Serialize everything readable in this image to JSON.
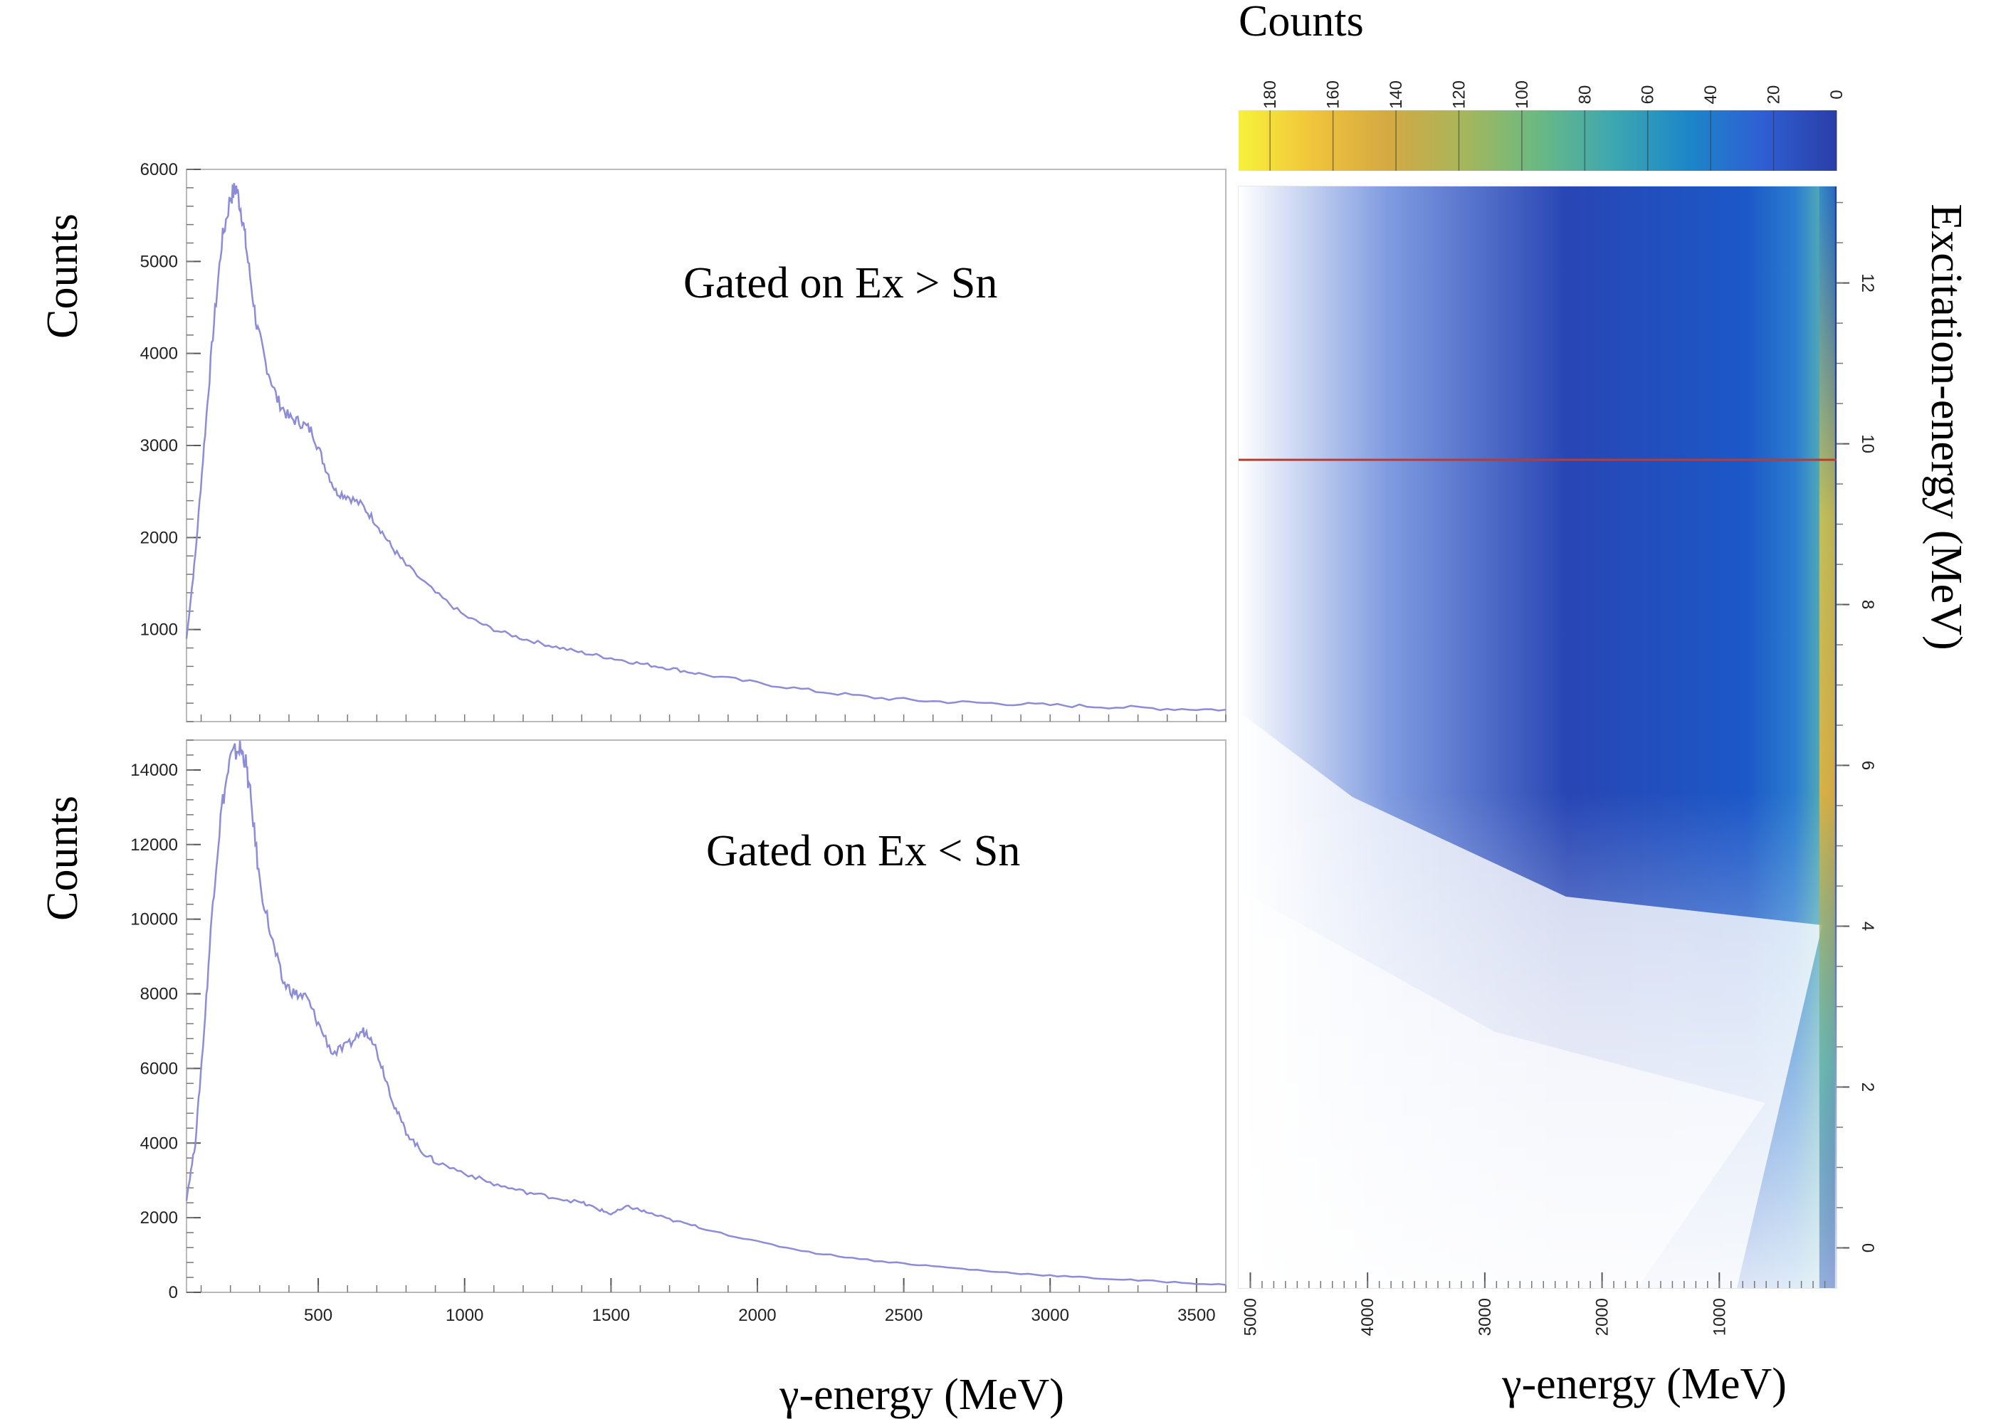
{
  "chart_data": [
    {
      "type": "line",
      "annotation": "Gated on Ex > Sn",
      "xlabel": "",
      "ylabel": "Counts",
      "xlim": [
        50,
        3600
      ],
      "ylim": [
        0,
        6000
      ],
      "yticks": [
        1000,
        2000,
        3000,
        4000,
        5000,
        6000
      ],
      "ytick_labels": [
        "1000",
        "2000",
        "3000",
        "4000",
        "5000",
        "6000"
      ],
      "line_color": "#8c8cd8",
      "series": [
        {
          "x": [
            50,
            80,
            110,
            140,
            170,
            200,
            220,
            240,
            260,
            290,
            320,
            360,
            400,
            440,
            480,
            520,
            560,
            600,
            650,
            700,
            750,
            800,
            900,
            1000,
            1100,
            1200,
            1300,
            1400,
            1500,
            1600,
            1700,
            1800,
            2000,
            2200,
            2400,
            2600,
            2800,
            3000,
            3200,
            3400,
            3600
          ],
          "y": [
            900,
            1800,
            3000,
            4200,
            5200,
            5700,
            5800,
            5500,
            5000,
            4300,
            3900,
            3500,
            3300,
            3250,
            3150,
            2800,
            2500,
            2450,
            2350,
            2150,
            1900,
            1700,
            1400,
            1150,
            1000,
            900,
            820,
            750,
            690,
            630,
            580,
            520,
            420,
            330,
            260,
            220,
            200,
            180,
            160,
            140,
            130
          ]
        }
      ]
    },
    {
      "type": "line",
      "annotation": "Gated on Ex < Sn",
      "xlabel": "γ-energy (MeV)",
      "ylabel": "Counts",
      "xlim": [
        50,
        3600
      ],
      "ylim": [
        0,
        14800
      ],
      "xticks": [
        500,
        1000,
        1500,
        2000,
        2500,
        3000,
        3500
      ],
      "xtick_labels": [
        "500",
        "1000",
        "1500",
        "2000",
        "2500",
        "3000",
        "3500"
      ],
      "yticks": [
        0,
        2000,
        4000,
        6000,
        8000,
        10000,
        12000,
        14000
      ],
      "ytick_labels": [
        "0",
        "2000",
        "4000",
        "6000",
        "8000",
        "10000",
        "12000",
        "14000"
      ],
      "line_color": "#8c8cd8",
      "series": [
        {
          "x": [
            50,
            80,
            110,
            140,
            170,
            200,
            230,
            250,
            270,
            300,
            340,
            380,
            420,
            460,
            500,
            550,
            600,
            650,
            680,
            720,
            760,
            800,
            850,
            900,
            1000,
            1100,
            1200,
            1300,
            1400,
            1450,
            1500,
            1560,
            1620,
            1700,
            1800,
            2000,
            2200,
            2400,
            2600,
            2800,
            3000,
            3200,
            3400,
            3600
          ],
          "y": [
            2500,
            4000,
            7000,
            10500,
            13000,
            14300,
            14600,
            14300,
            13200,
            11000,
            9500,
            8300,
            8000,
            7900,
            7200,
            6400,
            6600,
            7000,
            6900,
            6000,
            5000,
            4300,
            3800,
            3500,
            3200,
            2900,
            2700,
            2550,
            2400,
            2250,
            2100,
            2300,
            2150,
            1950,
            1750,
            1350,
            1050,
            850,
            700,
            560,
            450,
            360,
            280,
            200
          ]
        }
      ]
    },
    {
      "type": "heatmap",
      "xlabel": "γ-energy (MeV)",
      "ylabel": "Excitation-energy (MeV)",
      "colorbar_label": "Counts",
      "x_direction": "reversed",
      "xlim": [
        5100,
        0
      ],
      "ylim": [
        -0.5,
        13.2
      ],
      "xticks": [
        5000,
        4000,
        3000,
        2000,
        1000
      ],
      "xtick_labels": [
        "5000",
        "4000",
        "3000",
        "2000",
        "1000"
      ],
      "yticks": [
        0,
        2,
        4,
        6,
        8,
        10,
        12
      ],
      "ytick_labels": [
        "0",
        "2",
        "4",
        "6",
        "8",
        "10",
        "12"
      ],
      "colorbar_ticks": [
        180,
        160,
        140,
        120,
        100,
        80,
        60,
        40,
        20,
        0
      ],
      "colorbar_tick_labels": [
        "180",
        "160",
        "140",
        "120",
        "100",
        "80",
        "60",
        "40",
        "20",
        "0"
      ],
      "colorbar_range": [
        0,
        190
      ],
      "colormap": [
        "#f7f13a",
        "#f0c43a",
        "#d4a943",
        "#a8b65a",
        "#6ab983",
        "#3ea7b0",
        "#1c87c8",
        "#2f5fd3",
        "#2a3ea8"
      ],
      "reference_line": {
        "Ex": 9.8,
        "color": "#c0392b"
      },
      "ridge_gamma": 80,
      "ridge_color": "#d4c24a"
    }
  ]
}
